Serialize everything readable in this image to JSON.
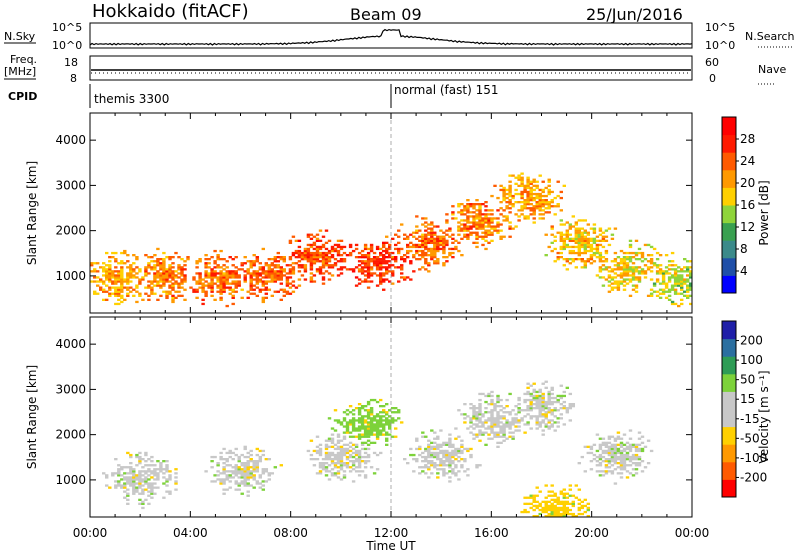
{
  "header": {
    "station": "Hokkaido (fitACF)",
    "beam": "Beam 09",
    "date": "25/Jun/2016"
  },
  "nsky_panel": {
    "left_label": "N.Sky",
    "left_ticks": [
      "10^5",
      "10^0"
    ],
    "right_label": "N.Search",
    "right_ticks": [
      "10^5",
      "10^0"
    ]
  },
  "freq_panel": {
    "left_label_line1": "Freq.",
    "left_label_line2": "[MHz]",
    "left_ticks": [
      "18",
      "8"
    ],
    "right_label": "Nave",
    "right_ticks": [
      "60",
      "0"
    ]
  },
  "cpid_panel": {
    "label": "CPID",
    "modes": [
      {
        "name": "themis 3300",
        "start_hour": 0
      },
      {
        "name": "normal (fast) 151",
        "start_hour": 12
      }
    ]
  },
  "colors": {
    "power_scale": [
      "#0000ff",
      "#1f4fa8",
      "#3b8a8a",
      "#39a050",
      "#8fd43a",
      "#ffd000",
      "#ff9900",
      "#ff5a00",
      "#ff1a00",
      "#ff0000"
    ],
    "velocity_scale": [
      "#ff0000",
      "#ff5a00",
      "#ff9900",
      "#ffd000",
      "#c8c8c8",
      "#c8c8c8",
      "#7dd23a",
      "#2e9c55",
      "#2b6fa0",
      "#1f1fa8"
    ],
    "ground_scatter": "#c8c8c8"
  },
  "chart_data": [
    {
      "type": "heatmap",
      "title": "",
      "xlabel": "",
      "ylabel": "Slant Range [km]",
      "xlim": [
        0,
        24
      ],
      "ylim": [
        180,
        4600
      ],
      "x_ticks": [
        "00:00",
        "04:00",
        "08:00",
        "12:00",
        "16:00",
        "20:00",
        "00:00"
      ],
      "y_ticks": [
        1000,
        2000,
        3000,
        4000
      ],
      "colorbar": {
        "label": "Power [dB]",
        "range": [
          0,
          32
        ],
        "ticks": [
          4,
          8,
          12,
          16,
          20,
          24,
          28
        ]
      },
      "features_hours_range_km": [
        {
          "hour": 1.0,
          "range_km": 900,
          "value_db": 24
        },
        {
          "hour": 3.0,
          "range_km": 950,
          "value_db": 26
        },
        {
          "hour": 5.0,
          "range_km": 900,
          "value_db": 27
        },
        {
          "hour": 7.0,
          "range_km": 1000,
          "value_db": 28
        },
        {
          "hour": 9.0,
          "range_km": 1400,
          "value_db": 29
        },
        {
          "hour": 11.5,
          "range_km": 1250,
          "value_db": 30
        },
        {
          "hour": 13.5,
          "range_km": 1700,
          "value_db": 27
        },
        {
          "hour": 15.5,
          "range_km": 2150,
          "value_db": 26
        },
        {
          "hour": 17.5,
          "range_km": 2700,
          "value_db": 24
        },
        {
          "hour": 19.5,
          "range_km": 1700,
          "value_db": 23
        },
        {
          "hour": 21.5,
          "range_km": 1150,
          "value_db": 22
        },
        {
          "hour": 23.5,
          "range_km": 900,
          "value_db": 20
        }
      ]
    },
    {
      "type": "heatmap",
      "title": "",
      "xlabel": "Time UT",
      "ylabel": "Slant Range [km]",
      "xlim": [
        0,
        24
      ],
      "ylim": [
        180,
        4600
      ],
      "x_ticks": [
        "00:00",
        "04:00",
        "08:00",
        "12:00",
        "16:00",
        "20:00",
        "00:00"
      ],
      "y_ticks": [
        1000,
        2000,
        3000,
        4000
      ],
      "colorbar": {
        "label": "Velocity [m s⁻¹]",
        "range": [
          -250,
          250
        ],
        "ticks": [
          200,
          100,
          50,
          15,
          -15,
          -50,
          -100,
          -200
        ]
      },
      "features_hours_range_km": [
        {
          "hour": 2.0,
          "range_km": 1000,
          "velocity": 0
        },
        {
          "hour": 6.0,
          "range_km": 1200,
          "velocity": 0
        },
        {
          "hour": 10.0,
          "range_km": 1500,
          "velocity": 0
        },
        {
          "hour": 11.0,
          "range_km": 2200,
          "velocity": 60
        },
        {
          "hour": 14.0,
          "range_km": 1500,
          "velocity": 30
        },
        {
          "hour": 16.0,
          "range_km": 2300,
          "velocity": -40
        },
        {
          "hour": 18.0,
          "range_km": 2600,
          "velocity": 0
        },
        {
          "hour": 21.0,
          "range_km": 1500,
          "velocity": 0
        },
        {
          "hour": 18.5,
          "range_km": 300,
          "velocity": -60
        }
      ]
    }
  ]
}
